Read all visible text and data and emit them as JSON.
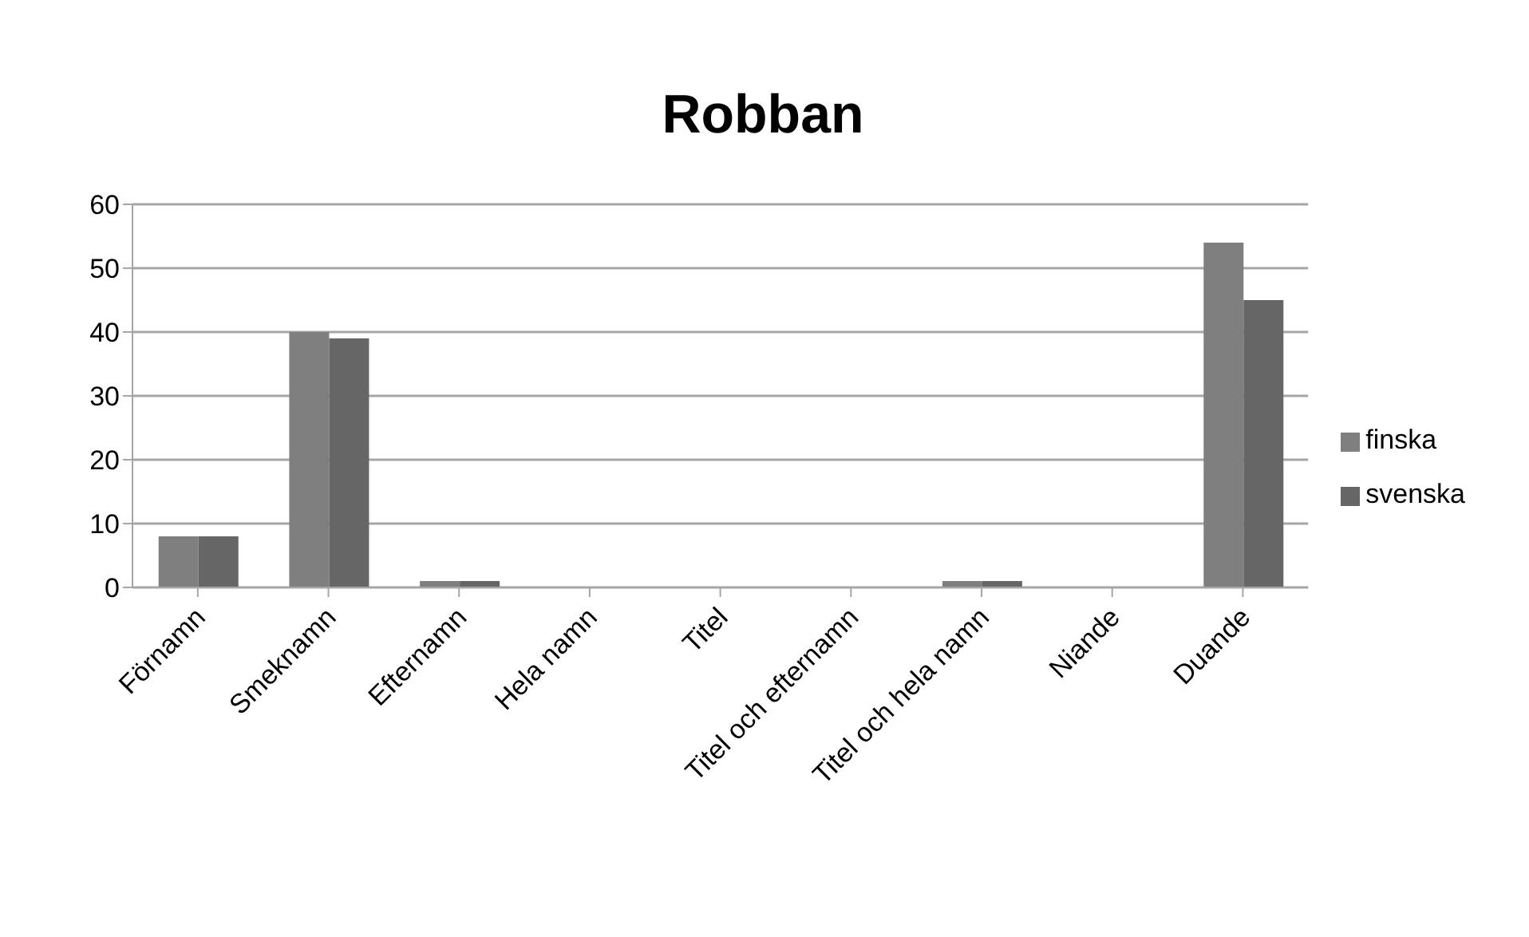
{
  "chart_data": {
    "type": "bar",
    "title": "Robban",
    "categories": [
      "Förnamn",
      "Smeknamn",
      "Efternamn",
      "Hela namn",
      "Titel",
      "Titel och efternamn",
      "Titel och hela namn",
      "Niande",
      "Duande"
    ],
    "series": [
      {
        "name": "finska",
        "color": "#7f7f7f",
        "values": [
          8,
          40,
          1,
          0,
          0,
          0,
          1,
          0,
          54
        ]
      },
      {
        "name": "svenska",
        "color": "#666666",
        "values": [
          8,
          39,
          1,
          0,
          0,
          0,
          1,
          0,
          45
        ]
      }
    ],
    "ylim": [
      0,
      60
    ],
    "yticks": [
      0,
      10,
      20,
      30,
      40,
      50,
      60
    ],
    "grid": "y",
    "legend": "right"
  }
}
